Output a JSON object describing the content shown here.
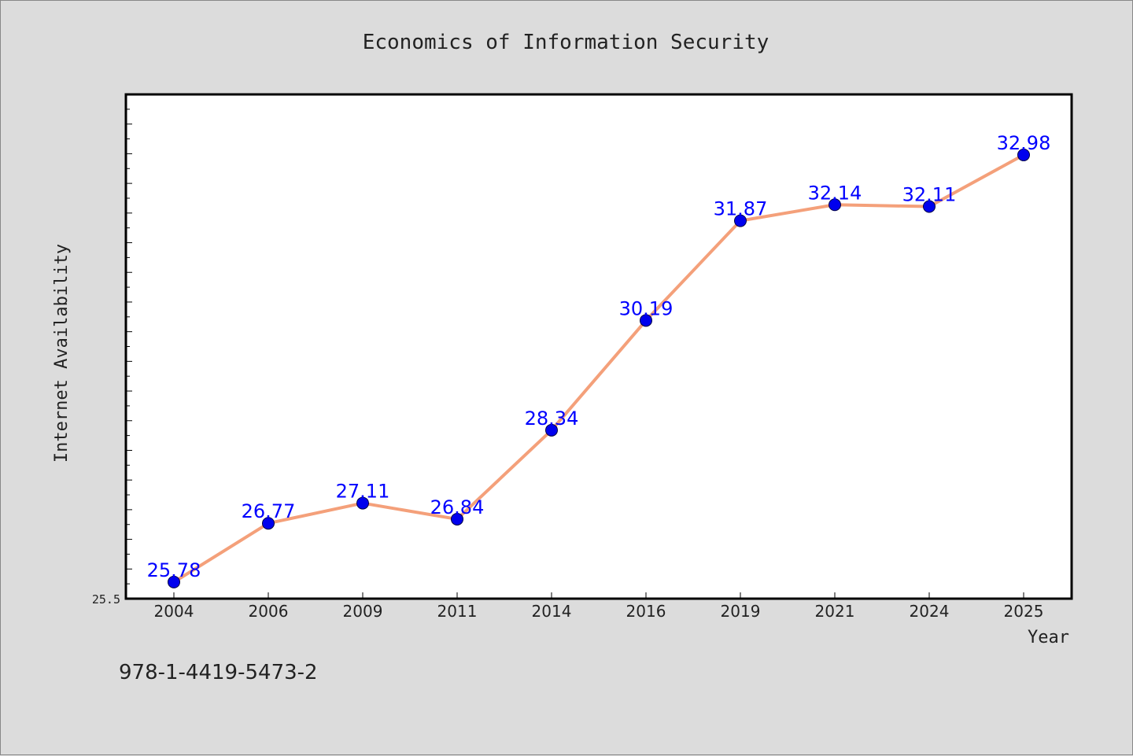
{
  "chart_data": {
    "type": "line",
    "title": "Economics of Information Security",
    "xlabel": "Year",
    "ylabel": "Internet Availability",
    "categories": [
      "2004",
      "2006",
      "2009",
      "2011",
      "2014",
      "2016",
      "2019",
      "2021",
      "2024",
      "2025"
    ],
    "series": [
      {
        "values": [
          25.78,
          26.77,
          27.11,
          26.84,
          28.34,
          30.19,
          31.87,
          32.14,
          32.11,
          32.98
        ]
      }
    ],
    "data_labels": [
      "25.78",
      "26.77",
      "27.11",
      "26.84",
      "28.34",
      "30.19",
      "31.87",
      "32.14",
      "32.11",
      "32.98"
    ],
    "ylim": [
      25.5,
      34.0
    ],
    "y_tick_labels": [
      "25.5"
    ],
    "grid": false,
    "legend": "none",
    "line_color": "#f4a07a",
    "marker_color": "#0000ee",
    "label_color": "#0000ff"
  },
  "footnote": "978-1-4419-5473-2"
}
